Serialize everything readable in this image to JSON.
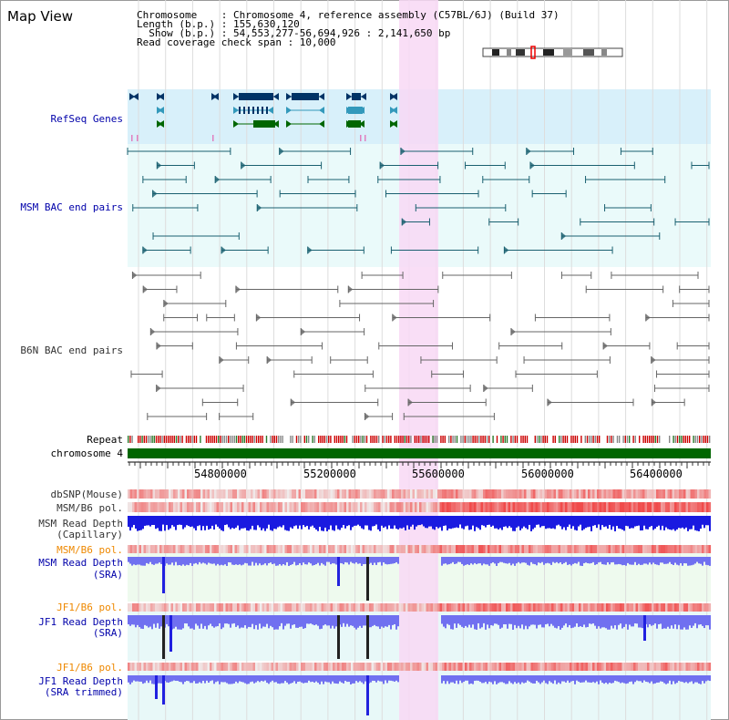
{
  "app": {
    "title": "Map View"
  },
  "header": {
    "lines": [
      "Chromosome    : Chromosome 4, reference assembly (C57BL/6J) (Build 37)",
      "Length (b.p.) : 155,630,120",
      "  Show (b.p.) : 54,553,277-56,694,926 : 2,141,650 bp",
      "Read coverage check span : 10,000"
    ]
  },
  "tracks": {
    "refseq": "RefSeq Genes",
    "msm_bac": "MSM BAC end pairs",
    "b6n_bac": "B6N BAC end pairs",
    "repeat": "Repeat",
    "chromosome": "chromosome 4",
    "dbsnp": "dbSNP(Mouse)",
    "msm_b6_pol_1": "MSM/B6 pol.",
    "msm_depth_cap_1": "MSM Read Depth",
    "msm_depth_cap_2": "(Capillary)",
    "msm_b6_pol_2": "MSM/B6 pol.",
    "msm_depth_sra_1": "MSM Read Depth",
    "msm_depth_sra_2": "(SRA)",
    "jf1_b6_pol_1": "JF1/B6 pol.",
    "jf1_depth_sra_1": "JF1 Read Depth",
    "jf1_depth_sra_2": "(SRA)",
    "jf1_b6_pol_2": "JF1/B6 pol.",
    "jf1_depth_trim_1": "JF1 Read Depth",
    "jf1_depth_trim_2": "(SRA trimmed)"
  },
  "axis": {
    "ticks": [
      "54800000",
      "55200000",
      "55600000",
      "56000000",
      "56400000"
    ]
  },
  "colors": {
    "label_blue": "#0000aa",
    "label_orange": "#ee8800",
    "label_black": "#000000",
    "refseq_bg": "#d8f0fa",
    "bac_bg": "#eafafa",
    "highlight": "#f8d8f4",
    "chrom_bar": "#006600",
    "msm_color": "#1a6070",
    "b6n_color": "#666666",
    "depth_blue": "#2020e0",
    "depth_light": "#7070f0"
  }
}
